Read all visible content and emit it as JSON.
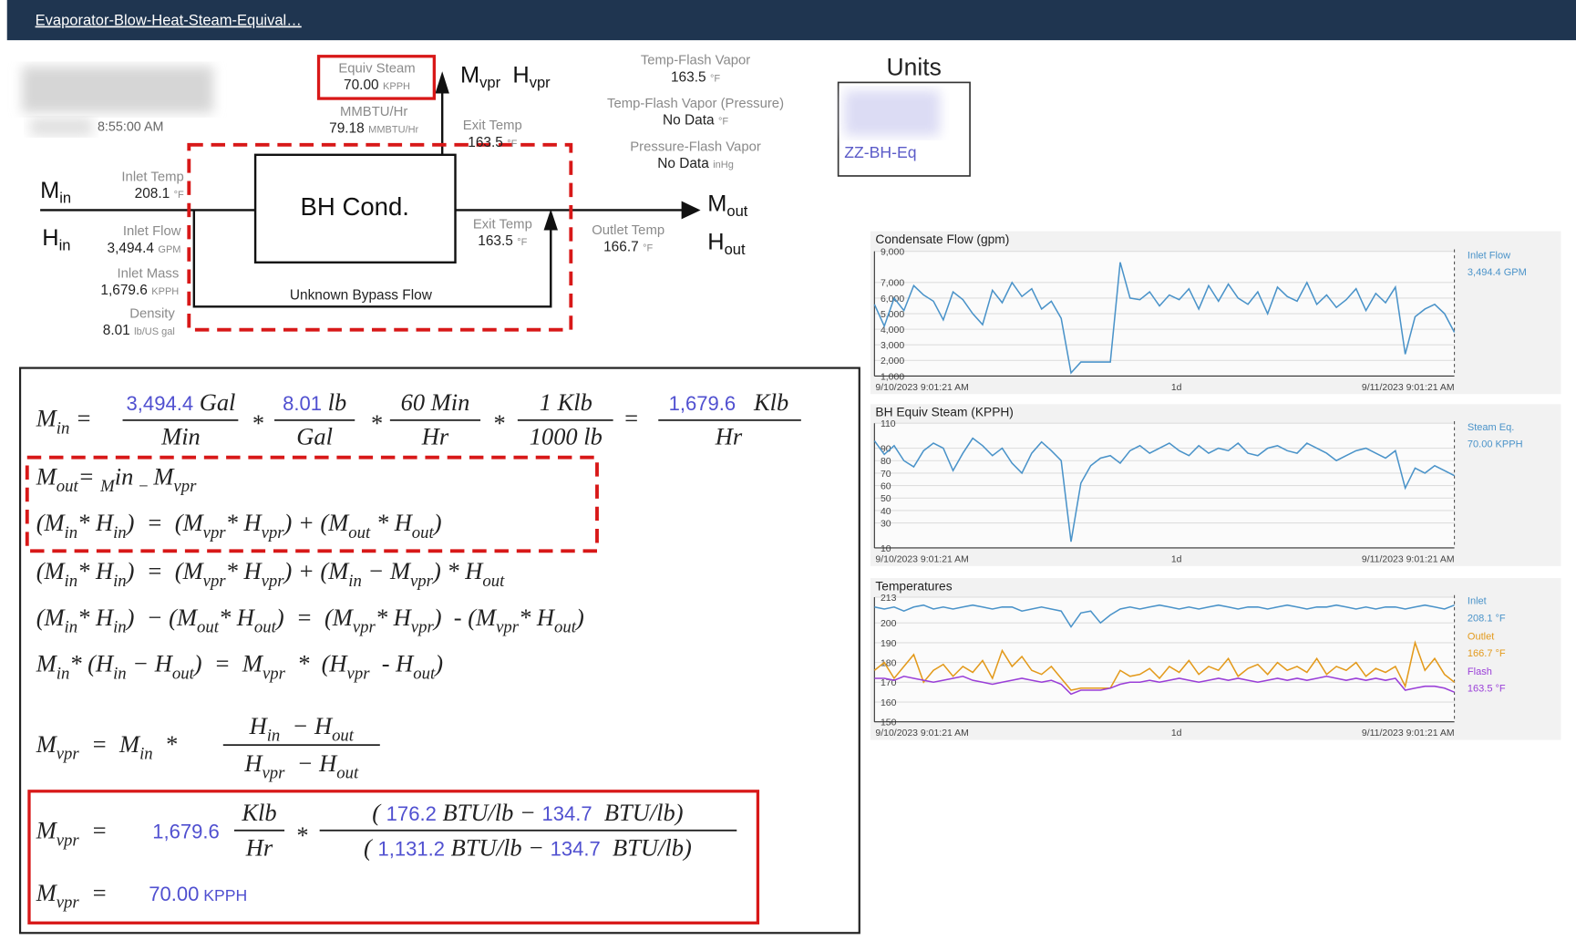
{
  "header": {
    "title": "Evaporator-Blow-Heat-Steam-Equival…"
  },
  "diagram": {
    "timestamp": "8:55:00 AM",
    "equiv_steam": {
      "label": "Equiv Steam",
      "value": "70.00",
      "unit": "KPPH"
    },
    "mmbtu": {
      "label": "MMBTU/Hr",
      "value": "79.18",
      "unit": "MMBTU/Hr"
    },
    "exit_temp_top": {
      "label": "Exit Temp",
      "value": "163.5",
      "unit": "°F"
    },
    "temp_flash": {
      "label": "Temp-Flash Vapor",
      "value": "163.5",
      "unit": "°F"
    },
    "temp_flash_pressure": {
      "label": "Temp-Flash Vapor (Pressure)",
      "value": "No Data",
      "unit": "°F"
    },
    "pressure_flash": {
      "label": "Pressure-Flash Vapor",
      "value": "No Data",
      "unit": "inHg"
    },
    "inlet_temp": {
      "label": "Inlet Temp",
      "value": "208.1",
      "unit": "°F"
    },
    "inlet_flow": {
      "label": "Inlet Flow",
      "value": "3,494.4",
      "unit": "GPM"
    },
    "inlet_mass": {
      "label": "Inlet Mass",
      "value": "1,679.6",
      "unit": "KPPH"
    },
    "density": {
      "label": "Density",
      "value": "8.01",
      "unit": "lb/US gal"
    },
    "exit_temp": {
      "label": "Exit Temp",
      "value": "163.5",
      "unit": "°F"
    },
    "outlet_temp": {
      "label": "Outlet Temp",
      "value": "166.7",
      "unit": "°F"
    },
    "condenser": "BH Cond.",
    "bypass": "Unknown Bypass Flow",
    "symbols": {
      "m_in": {
        "base": "M",
        "sub": "in"
      },
      "h_in": {
        "base": "H",
        "sub": "in"
      },
      "m_vpr": {
        "base": "M",
        "sub": "vpr"
      },
      "h_vpr": {
        "base": "H",
        "sub": "vpr"
      },
      "m_out": {
        "base": "M",
        "sub": "out"
      },
      "h_out": {
        "base": "H",
        "sub": "out"
      }
    }
  },
  "units": {
    "title": "Units",
    "item": "ZZ-BH-Eq"
  },
  "formulas": {
    "g1a": [
      "M",
      "in",
      " = "
    ],
    "g1n1": [
      "3,494.4",
      " Gal"
    ],
    "g1d1": [
      "Min"
    ],
    "g1m1": [
      "*"
    ],
    "g1n2": [
      "8.01",
      " lb"
    ],
    "g1d2": [
      "Gal"
    ],
    "g1m2": [
      "*"
    ],
    "g1n3": [
      "60 Min"
    ],
    "g1d3": [
      "Hr"
    ],
    "g1m3": [
      "*"
    ],
    "g1n4": [
      "1 Klb"
    ],
    "g1d4": [
      "1000 lb"
    ],
    "g1e": [
      "="
    ],
    "g1n5": [
      "1,679.6",
      "   Klb"
    ],
    "g1d5": [
      "Hr"
    ],
    "l2": [
      "M",
      "out",
      "= ",
      "M",
      "in",
      " − ",
      "M",
      "vpr"
    ],
    "l3": [
      "(M",
      "in",
      "* H",
      "in",
      ")  =  (M",
      "vpr",
      "* H",
      "vpr",
      ") + (M",
      "out",
      " * H",
      "out",
      ")"
    ],
    "l4": [
      "(M",
      "in",
      "* H",
      "in",
      ")  =  (M",
      "vpr",
      "* H",
      "vpr",
      ") + (M",
      "in",
      " − M",
      "vpr",
      ") * H",
      "out"
    ],
    "l5": [
      "(M",
      "in",
      "* H",
      "in",
      ")  − (M",
      "out",
      "* H",
      "out",
      ")  =  (M",
      "vpr",
      "* H",
      "vpr",
      ")  - (M",
      "vpr",
      "* H",
      "out",
      ")"
    ],
    "l6": [
      "M",
      "in",
      "* (H",
      "in",
      " − H",
      "out",
      ")  =  M",
      "vpr",
      "  *  (H",
      "vpr",
      "  - H",
      "out",
      ")"
    ],
    "l7a": [
      "M",
      "vpr",
      "  =  M",
      "in",
      "  *"
    ],
    "l7n": [
      "H",
      "in",
      "  − H",
      "out"
    ],
    "l7d": [
      "H",
      "vpr",
      "  − H",
      "out"
    ],
    "l8a": [
      "M",
      "vpr",
      "  ="
    ],
    "l8v": [
      "1,679.6"
    ],
    "l8n1": [
      "Klb"
    ],
    "l8d1": [
      "Hr"
    ],
    "l8m": [
      "*"
    ],
    "l8n": [
      "( ",
      "176.2",
      " BTU/lb − ",
      "134.7",
      "  BTU/lb)"
    ],
    "l8d": [
      "( ",
      "1,131.2",
      " BTU/lb − ",
      "134.7",
      "  BTU/lb)"
    ],
    "l9": [
      "M",
      "vpr",
      "  ="
    ],
    "l9v": [
      "70.00",
      " KPPH"
    ]
  },
  "chart_data": [
    {
      "type": "line",
      "title": "Condensate Flow (gpm)",
      "x_tick_labels": [
        "9/10/2023 9:01:21 AM",
        "1d",
        "9/11/2023 9:01:21 AM"
      ],
      "ylim": [
        1000,
        9000
      ],
      "yticks": [
        {
          "value": 1000,
          "label": "1,000"
        },
        {
          "value": 2000,
          "label": "2,000"
        },
        {
          "value": 3000,
          "label": "3,000"
        },
        {
          "value": 4000,
          "label": "4,000"
        },
        {
          "value": 5000,
          "label": "5,000"
        },
        {
          "value": 6000,
          "label": "6,000"
        },
        {
          "value": 7000,
          "label": "7,000"
        },
        {
          "value": 9000,
          "label": "9,000"
        }
      ],
      "grid": true,
      "series": [
        {
          "name": "Inlet Flow",
          "legend_value": "3,494.4 GPM",
          "color": "#4a93c9",
          "values": [
            5600,
            4200,
            6000,
            5200,
            6800,
            6200,
            5800,
            4600,
            6400,
            5900,
            5000,
            4300,
            6500,
            5700,
            7000,
            6100,
            6600,
            5300,
            5800,
            4700,
            1200,
            1900,
            1900,
            1900,
            1900,
            8300,
            6000,
            5900,
            6400,
            5500,
            6200,
            5900,
            6600,
            5300,
            6800,
            5800,
            6900,
            6000,
            5600,
            6400,
            5000,
            6700,
            6100,
            5800,
            7000,
            5600,
            6200,
            5400,
            5900,
            6600,
            5200,
            6300,
            5700,
            6700,
            2400,
            4800,
            5300,
            5600,
            5000,
            3800
          ]
        }
      ]
    },
    {
      "type": "line",
      "title": "BH Equiv Steam (KPPH)",
      "x_tick_labels": [
        "9/10/2023 9:01:21 AM",
        "1d",
        "9/11/2023 9:01:21 AM"
      ],
      "ylim": [
        10,
        110
      ],
      "yticks": [
        10,
        30,
        40,
        50,
        60,
        70,
        80,
        90,
        110
      ],
      "grid": true,
      "series": [
        {
          "name": "Steam Eq.",
          "legend_value": "70.00 KPPH",
          "color": "#4a93c9",
          "values": [
            96,
            85,
            92,
            80,
            75,
            88,
            94,
            90,
            72,
            86,
            98,
            92,
            84,
            90,
            78,
            70,
            86,
            95,
            88,
            80,
            15,
            62,
            76,
            82,
            84,
            78,
            88,
            92,
            86,
            90,
            94,
            88,
            84,
            92,
            86,
            90,
            88,
            94,
            86,
            84,
            90,
            92,
            88,
            86,
            94,
            90,
            86,
            80,
            84,
            88,
            90,
            86,
            82,
            88,
            58,
            74,
            70,
            76,
            72,
            68
          ]
        }
      ]
    },
    {
      "type": "line",
      "title": "Temperatures",
      "x_tick_labels": [
        "9/10/2023 9:01:21 AM",
        "1d",
        "9/11/2023 9:01:21 AM"
      ],
      "ylim": [
        150,
        213
      ],
      "yticks": [
        150,
        160,
        170,
        180,
        190,
        200,
        213
      ],
      "grid": true,
      "series": [
        {
          "name": "Inlet",
          "legend_value": "208.1 °F",
          "color": "#4a93c9",
          "values": [
            208,
            207,
            208,
            206,
            208,
            209,
            207,
            208,
            207,
            208,
            209,
            208,
            207,
            208,
            208,
            206,
            207,
            208,
            207,
            206,
            198,
            205,
            206,
            200,
            204,
            207,
            208,
            207,
            208,
            209,
            208,
            207,
            208,
            207,
            208,
            209,
            208,
            207,
            208,
            208,
            207,
            208,
            209,
            208,
            207,
            208,
            208,
            209,
            208,
            207,
            208,
            207,
            208,
            208,
            207,
            208,
            209,
            208,
            207,
            209
          ]
        },
        {
          "name": "Outlet",
          "legend_value": "166.7 °F",
          "color": "#e39a1c",
          "values": [
            176,
            180,
            172,
            178,
            184,
            170,
            176,
            179,
            173,
            178,
            175,
            181,
            172,
            186,
            178,
            183,
            176,
            174,
            178,
            172,
            166,
            167,
            167,
            167,
            167,
            176,
            173,
            174,
            177,
            172,
            178,
            175,
            181,
            174,
            178,
            176,
            182,
            173,
            177,
            179,
            174,
            180,
            176,
            178,
            175,
            182,
            174,
            178,
            176,
            180,
            173,
            177,
            175,
            178,
            168,
            190,
            176,
            182,
            174,
            170
          ]
        },
        {
          "name": "Flash",
          "legend_value": "163.5 °F",
          "color": "#9a3fd8",
          "values": [
            172,
            172,
            171,
            173,
            172,
            171,
            170,
            171,
            172,
            173,
            171,
            170,
            169,
            170,
            171,
            172,
            171,
            170,
            171,
            169,
            164,
            166,
            166,
            166,
            167,
            169,
            170,
            170,
            171,
            170,
            171,
            172,
            171,
            170,
            171,
            172,
            171,
            172,
            171,
            170,
            171,
            172,
            171,
            172,
            171,
            172,
            173,
            172,
            171,
            172,
            171,
            172,
            171,
            172,
            166,
            167,
            168,
            168,
            167,
            165
          ]
        }
      ]
    }
  ]
}
